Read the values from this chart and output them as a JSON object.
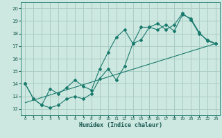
{
  "xlabel": "Humidex (Indice chaleur)",
  "background_color": "#cce8e0",
  "grid_color": "#aaccc4",
  "line_color": "#1a7a6e",
  "xlim": [
    -0.5,
    23.5
  ],
  "ylim": [
    11.5,
    20.5
  ],
  "xticks": [
    0,
    1,
    2,
    3,
    4,
    5,
    6,
    7,
    8,
    9,
    10,
    11,
    12,
    13,
    14,
    15,
    16,
    17,
    18,
    19,
    20,
    21,
    22,
    23
  ],
  "yticks": [
    12,
    13,
    14,
    15,
    16,
    17,
    18,
    19,
    20
  ],
  "series1_x": [
    0,
    1,
    2,
    3,
    4,
    5,
    6,
    7,
    8,
    9,
    10,
    11,
    12,
    13,
    14,
    15,
    16,
    17,
    18,
    19,
    20,
    21,
    22,
    23
  ],
  "series1_y": [
    14.0,
    12.8,
    12.3,
    12.1,
    12.3,
    12.8,
    13.0,
    12.8,
    13.2,
    14.4,
    15.2,
    14.3,
    15.4,
    17.2,
    17.5,
    18.5,
    18.3,
    18.7,
    18.2,
    19.5,
    19.2,
    18.1,
    17.4,
    17.2
  ],
  "series2_x": [
    0,
    1,
    2,
    3,
    4,
    5,
    6,
    7,
    8,
    9,
    10,
    11,
    12,
    13,
    14,
    15,
    16,
    17,
    18,
    19,
    20,
    21,
    22,
    23
  ],
  "series2_y": [
    14.0,
    12.8,
    12.3,
    13.6,
    13.2,
    13.7,
    14.3,
    13.8,
    13.5,
    15.2,
    16.5,
    17.7,
    18.3,
    17.2,
    18.5,
    18.5,
    18.8,
    18.3,
    18.7,
    19.6,
    19.1,
    18.0,
    17.5,
    17.2
  ],
  "series3_x": [
    0,
    23
  ],
  "series3_y": [
    12.5,
    17.2
  ]
}
